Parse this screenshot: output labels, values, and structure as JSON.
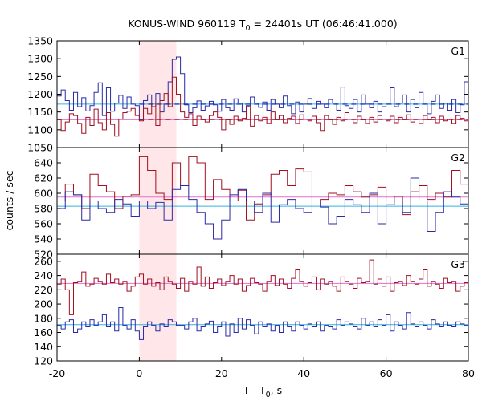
{
  "chart_data": {
    "type": "line",
    "title_parts": {
      "prefix": "KONUS-WIND 960119 T",
      "subscript": "0",
      "suffix": " = 24401s UT (06:46:41.000)"
    },
    "xlabel_parts": {
      "prefix": "T - T",
      "subscript": "0",
      "suffix": ", s"
    },
    "ylabel": "counts / sec",
    "xlim": [
      -20,
      80
    ],
    "xticks": [
      -20,
      0,
      20,
      40,
      60,
      80
    ],
    "grid": false,
    "highlight_interval": [
      0,
      9
    ],
    "colors": {
      "highlight": "#ffe6e8",
      "red_series": "#a01020",
      "blue_series": "#2a2aa8",
      "red_fit": "#e070d0",
      "blue_fit": "#30b0e0",
      "red_dash": "#b01018",
      "blue_dash": "#1844c0"
    },
    "panels": [
      {
        "label": "G1",
        "ylim": [
          1050,
          1350
        ],
        "yticks": [
          1050,
          1100,
          1150,
          1200,
          1250,
          1300,
          1350
        ],
        "series": [
          {
            "color_key": "blue_series",
            "x_start": -20,
            "bin": 1.0,
            "values": [
              1195,
              1212,
              1182,
              1155,
              1205,
              1165,
              1190,
              1153,
              1168,
              1205,
              1232,
              1140,
              1218,
              1152,
              1175,
              1197,
              1160,
              1192,
              1172,
              1168,
              1128,
              1182,
              1198,
              1165,
              1202,
              1150,
              1172,
              1235,
              1298,
              1305,
              1258,
              1170,
              1148,
              1162,
              1181,
              1155,
              1167,
              1180,
              1170,
              1152,
              1185,
              1162,
              1155,
              1187,
              1175,
              1150,
              1168,
              1192,
              1175,
              1163,
              1178,
              1155,
              1185,
              1172,
              1162,
              1195,
              1168,
              1145,
              1178,
              1150,
              1172,
              1188,
              1160,
              1180,
              1172,
              1162,
              1185,
              1175,
              1155,
              1220,
              1168,
              1160,
              1185,
              1150,
              1198,
              1172,
              1162,
              1180,
              1150,
              1165,
              1175,
              1218,
              1165,
              1175,
              1198,
              1150,
              1185,
              1162,
              1205,
              1175,
              1145,
              1180,
              1198,
              1160,
              1175,
              1155,
              1185,
              1148,
              1170,
              1235
            ]
          },
          {
            "color_key": "red_series",
            "x_start": -20,
            "bin": 1.0,
            "values": [
              1128,
              1098,
              1122,
              1145,
              1140,
              1118,
              1090,
              1135,
              1112,
              1158,
              1120,
              1100,
              1148,
              1115,
              1082,
              1130,
              1148,
              1152,
              1160,
              1140,
              1125,
              1160,
              1145,
              1175,
              1112,
              1182,
              1202,
              1165,
              1248,
              1200,
              1150,
              1135,
              1145,
              1112,
              1138,
              1128,
              1122,
              1140,
              1150,
              1135,
              1100,
              1128,
              1115,
              1138,
              1125,
              1132,
              1165,
              1110,
              1140,
              1125,
              1135,
              1118,
              1150,
              1128,
              1140,
              1120,
              1132,
              1138,
              1118,
              1142,
              1130,
              1125,
              1138,
              1120,
              1098,
              1140,
              1128,
              1115,
              1135,
              1125,
              1148,
              1130,
              1120,
              1138,
              1128,
              1118,
              1135,
              1122,
              1140,
              1130,
              1125,
              1138,
              1120,
              1135,
              1128,
              1142,
              1122,
              1130,
              1118,
              1140,
              1128,
              1135,
              1120,
              1138,
              1125,
              1130,
              1118,
              1140,
              1132,
              1125
            ]
          }
        ],
        "fits": [
          {
            "color_key": "blue_fit",
            "value": 1172
          },
          {
            "color_key": "red_fit",
            "value": 1128
          }
        ],
        "dash_fits": [
          {
            "color_key": "blue_dash",
            "value": 1172,
            "x_from": 0,
            "x_to": 80
          },
          {
            "color_key": "red_dash",
            "value": 1129,
            "x_from": 0,
            "x_to": 80
          }
        ]
      },
      {
        "label": "G2",
        "ylim": [
          520,
          660
        ],
        "yticks": [
          520,
          540,
          560,
          580,
          600,
          620,
          640
        ],
        "series": [
          {
            "color_key": "red_series",
            "x_start": -20,
            "bin": 2.0,
            "values": [
              590,
              612,
              598,
              580,
              625,
              610,
              602,
              580,
              596,
              598,
              648,
              630,
              600,
              592,
              640,
              610,
              648,
              640,
              592,
              618,
              605,
              590,
              604,
              565,
              586,
              598,
              625,
              630,
              610,
              632,
              628,
              590,
              592,
              600,
              598,
              610,
              602,
              595,
              598,
              608,
              590,
              596,
              572,
              602,
              610,
              592,
              600,
              595,
              630,
              612
            ]
          },
          {
            "color_key": "blue_series",
            "x_start": -20,
            "bin": 2.0,
            "values": [
              580,
              602,
              598,
              565,
              590,
              580,
              575,
              592,
              586,
              570,
              590,
              580,
              588,
              565,
              605,
              610,
              592,
              575,
              560,
              540,
              565,
              598,
              605,
              590,
              575,
              600,
              562,
              585,
              592,
              580,
              575,
              590,
              582,
              560,
              570,
              592,
              585,
              575,
              600,
              560,
              585,
              590,
              575,
              620,
              590,
              550,
              575,
              602,
              595,
              586
            ]
          }
        ],
        "fits": [
          {
            "color_key": "red_fit",
            "value": 595
          },
          {
            "color_key": "blue_fit",
            "value": 583
          }
        ],
        "dash_fits": []
      },
      {
        "label": "G3",
        "ylim": [
          120,
          270
        ],
        "yticks": [
          120,
          140,
          160,
          180,
          200,
          220,
          240,
          260
        ],
        "series": [
          {
            "color_key": "red_series",
            "x_start": -20,
            "bin": 1.0,
            "values": [
              228,
              235,
              220,
              185,
              230,
              232,
              245,
              225,
              228,
              236,
              232,
              228,
              242,
              230,
              235,
              228,
              232,
              218,
              225,
              238,
              242,
              228,
              235,
              225,
              230,
              220,
              238,
              232,
              228,
              222,
              236,
              218,
              232,
              228,
              252,
              225,
              238,
              222,
              230,
              235,
              226,
              232,
              240,
              228,
              235,
              218,
              226,
              236,
              230,
              228,
              218,
              232,
              240,
              226,
              235,
              228,
              222,
              236,
              248,
              232,
              225,
              230,
              238,
              220,
              235,
              228,
              232,
              225,
              218,
              238,
              232,
              228,
              222,
              236,
              230,
              232,
              262,
              228,
              235,
              225,
              238,
              218,
              230,
              232,
              226,
              240,
              232,
              228,
              235,
              248,
              225,
              232,
              228,
              222,
              236,
              230,
              232,
              218,
              225,
              230
            ]
          },
          {
            "color_key": "blue_series",
            "x_start": -20,
            "bin": 1.0,
            "values": [
              170,
              165,
              175,
              178,
              160,
              165,
              175,
              168,
              178,
              170,
              175,
              185,
              168,
              175,
              162,
              195,
              170,
              165,
              178,
              162,
              150,
              168,
              175,
              170,
              162,
              172,
              168,
              178,
              175,
              170,
              170,
              165,
              175,
              180,
              162,
              168,
              172,
              176,
              160,
              168,
              175,
              155,
              172,
              160,
              180,
              165,
              178,
              170,
              158,
              175,
              168,
              172,
              162,
              170,
              160,
              175,
              168,
              162,
              175,
              170,
              165,
              172,
              168,
              175,
              162,
              170,
              168,
              165,
              178,
              170,
              175,
              172,
              168,
              165,
              180,
              170,
              175,
              168,
              178,
              170,
              185,
              162,
              175,
              170,
              165,
              188,
              172,
              168,
              175,
              170,
              165,
              178,
              172,
              168,
              175,
              170,
              168,
              175,
              172,
              170
            ]
          }
        ],
        "fits": [
          {
            "color_key": "red_fit",
            "value": 229
          },
          {
            "color_key": "blue_fit",
            "value": 171
          }
        ],
        "dash_fits": []
      }
    ]
  }
}
